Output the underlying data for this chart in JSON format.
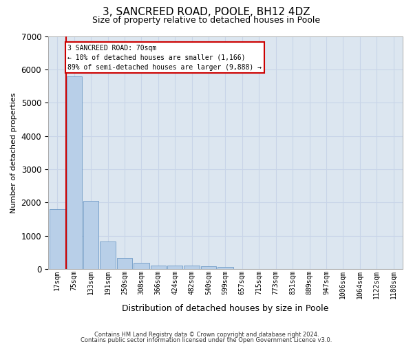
{
  "title": "3, SANCREED ROAD, POOLE, BH12 4DZ",
  "subtitle": "Size of property relative to detached houses in Poole",
  "xlabel": "Distribution of detached houses by size in Poole",
  "ylabel": "Number of detached properties",
  "bin_labels": [
    "17sqm",
    "75sqm",
    "133sqm",
    "191sqm",
    "250sqm",
    "308sqm",
    "366sqm",
    "424sqm",
    "482sqm",
    "540sqm",
    "599sqm",
    "657sqm",
    "715sqm",
    "773sqm",
    "831sqm",
    "889sqm",
    "947sqm",
    "1006sqm",
    "1064sqm",
    "1122sqm",
    "1180sqm"
  ],
  "bin_values": [
    1800,
    5800,
    2050,
    820,
    340,
    185,
    115,
    105,
    100,
    95,
    70,
    0,
    0,
    0,
    0,
    0,
    0,
    0,
    0,
    0,
    0
  ],
  "bar_color": "#b8cfe8",
  "bar_edge_color": "#6090c0",
  "vline_x": 0.5,
  "annotation_text": "3 SANCREED ROAD: 70sqm\n← 10% of detached houses are smaller (1,166)\n89% of semi-detached houses are larger (9,888) →",
  "annotation_box_color": "#ffffff",
  "annotation_box_edge": "#cc0000",
  "vline_color": "#cc0000",
  "footer_line1": "Contains HM Land Registry data © Crown copyright and database right 2024.",
  "footer_line2": "Contains public sector information licensed under the Open Government Licence v3.0.",
  "ylim": [
    0,
    7000
  ],
  "grid_color": "#c8d4e8",
  "background_color": "#dce6f0",
  "title_fontsize": 11,
  "subtitle_fontsize": 9,
  "tick_fontsize": 7,
  "ylabel_fontsize": 8,
  "xlabel_fontsize": 9
}
